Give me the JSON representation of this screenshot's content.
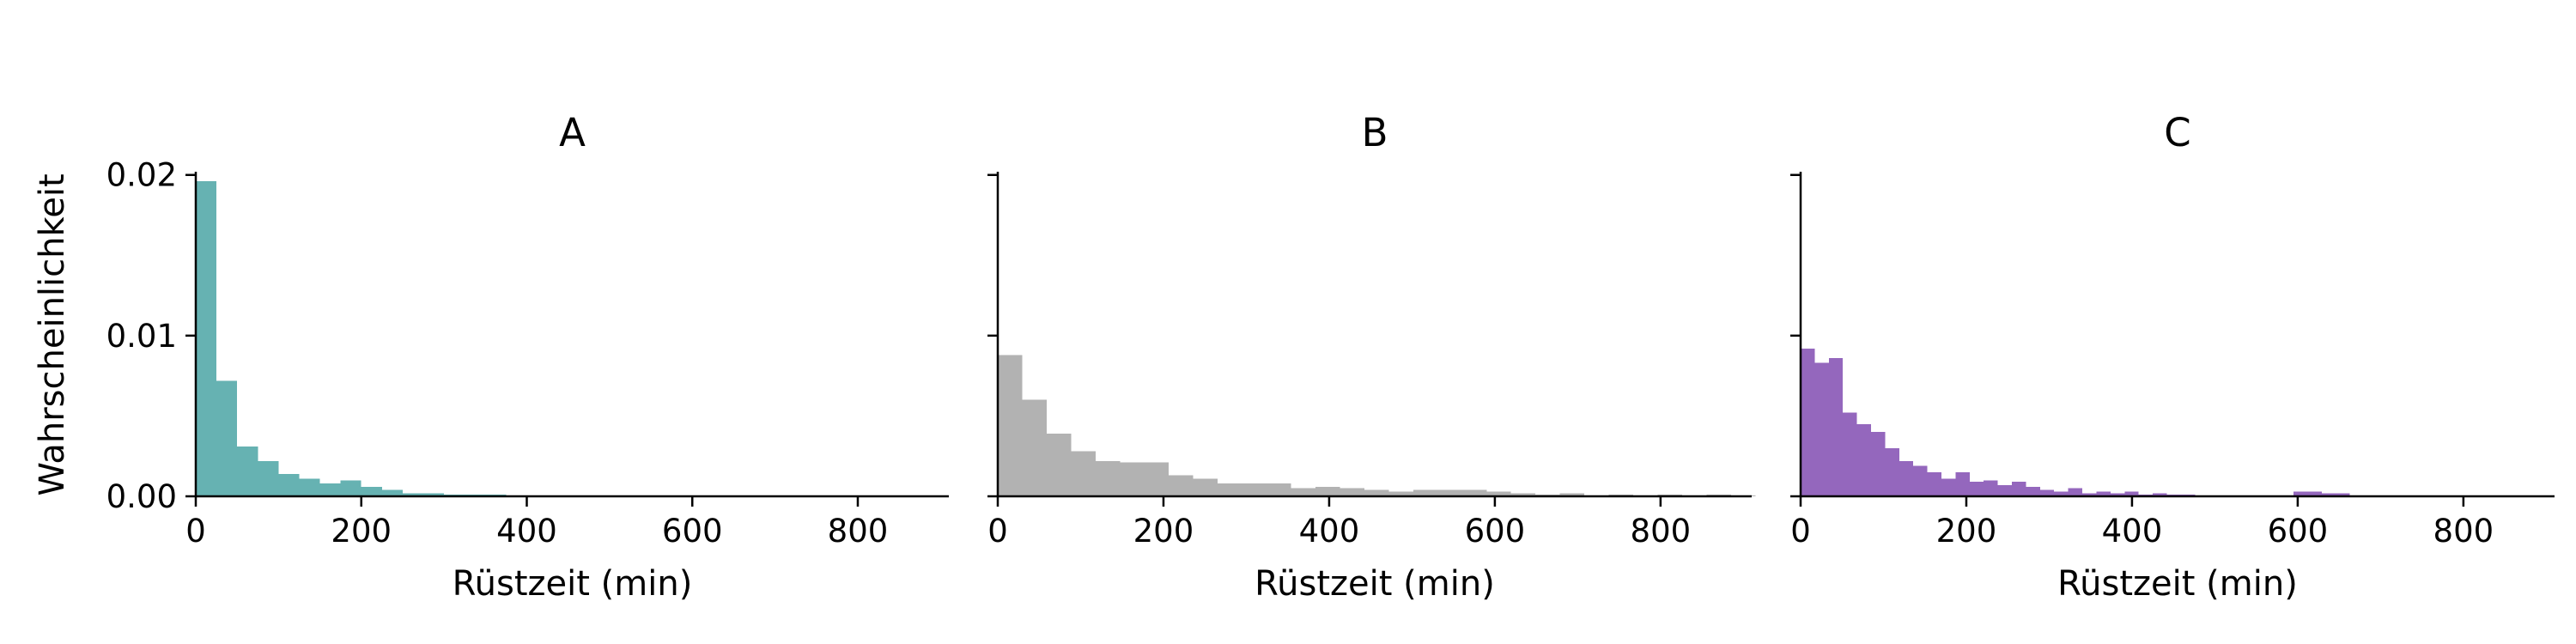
{
  "figure": {
    "ylabel": "Wahrscheinlichkeit"
  },
  "chart_data": [
    {
      "type": "bar",
      "title": "A",
      "xlabel": "Rüstzeit (min)",
      "ylabel": "Wahrscheinlichkeit",
      "color": "#66b2b2",
      "xlim": [
        0,
        910
      ],
      "ylim": [
        0,
        0.0202
      ],
      "xticks": [
        "0",
        "200",
        "400",
        "600",
        "800"
      ],
      "yticks": [
        "0.00",
        "0.01",
        "0.02"
      ],
      "bin_width": 25,
      "bin_start": 0,
      "values": [
        0.0196,
        0.0072,
        0.0031,
        0.0022,
        0.0014,
        0.0011,
        0.0008,
        0.001,
        0.0006,
        0.0004,
        0.0002,
        0.0002,
        0.0001,
        0.0001,
        0.0001,
        5e-05,
        3e-05,
        3e-05,
        2e-05,
        1e-05
      ]
    },
    {
      "type": "bar",
      "title": "B",
      "xlabel": "Rüstzeit (min)",
      "ylabel": "",
      "color": "#b2b2b2",
      "xlim": [
        0,
        910
      ],
      "ylim": [
        0,
        0.0202
      ],
      "xticks": [
        "0",
        "200",
        "400",
        "600",
        "800"
      ],
      "yticks": [
        "",
        "",
        ""
      ],
      "bin_width": 29.5,
      "bin_start": 0,
      "values": [
        0.0088,
        0.006,
        0.0039,
        0.0028,
        0.0022,
        0.0021,
        0.0021,
        0.0013,
        0.0011,
        0.0008,
        0.0008,
        0.0008,
        0.0005,
        0.0006,
        0.0005,
        0.0004,
        0.0003,
        0.0004,
        0.0004,
        0.0004,
        0.0003,
        0.0002,
        0.0001,
        0.0002,
        5e-05,
        0.0001,
        5e-05,
        0.0001,
        5e-05,
        0.0001,
        5e-05
      ]
    },
    {
      "type": "bar",
      "title": "C",
      "xlabel": "Rüstzeit (min)",
      "ylabel": "",
      "color": "#9467bd",
      "xlim": [
        0,
        910
      ],
      "ylim": [
        0,
        0.0202
      ],
      "xticks": [
        "0",
        "200",
        "400",
        "600",
        "800"
      ],
      "yticks": [
        "",
        "",
        ""
      ],
      "bin_width": 17,
      "bin_start": 0,
      "values": [
        0.0092,
        0.0083,
        0.0086,
        0.0052,
        0.0045,
        0.004,
        0.003,
        0.0022,
        0.0019,
        0.0015,
        0.0011,
        0.0015,
        0.0009,
        0.001,
        0.0007,
        0.0009,
        0.0006,
        0.0004,
        0.0003,
        0.0005,
        0.0002,
        0.0003,
        0.0002,
        0.0003,
        0.0001,
        0.0002,
        0.0001,
        0.0001,
        0.0,
        0.0,
        0.0,
        0.0,
        0.0,
        0.0,
        0.0,
        0.0003,
        0.0003,
        0.0002,
        0.0002,
        0.0,
        0.0,
        0.0,
        0.0,
        0.0,
        0.0,
        0.0,
        0.0,
        0.0,
        0.0,
        0.0,
        0.0,
        0.0,
        0.0,
        0.0,
        0.0,
        0.0,
        0.0,
        0.0,
        0.0,
        0.0,
        0.0,
        0.0,
        0.0,
        0.0,
        0.0,
        0.0,
        0.0004,
        0.0,
        0.0,
        0.0,
        0.0,
        0.0,
        0.0001,
        0.0,
        0.0001
      ]
    }
  ]
}
